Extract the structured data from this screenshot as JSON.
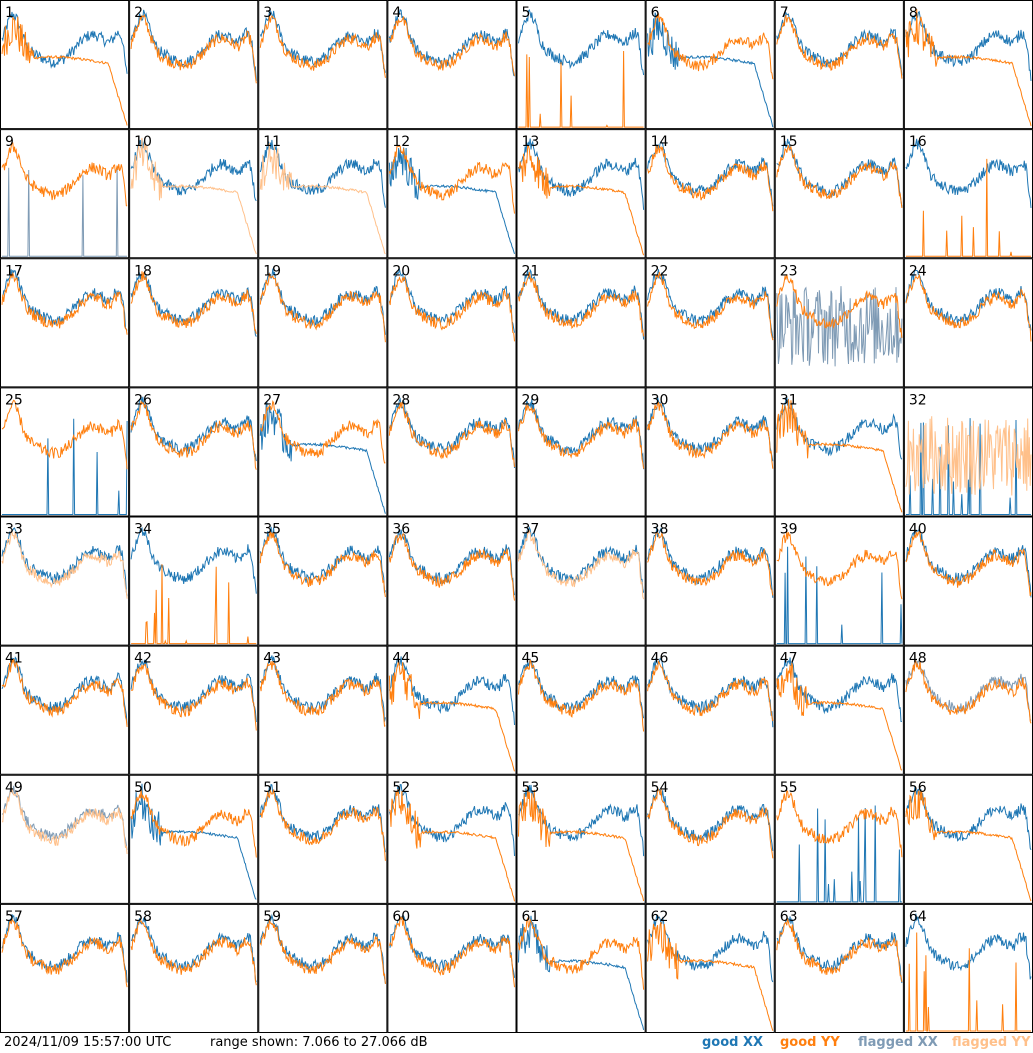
{
  "chart_data": {
    "type": "line",
    "grid_rows": 8,
    "grid_cols": 8,
    "panel_labels": [
      "1",
      "2",
      "3",
      "4",
      "5",
      "6",
      "7",
      "8",
      "9",
      "10",
      "11",
      "12",
      "13",
      "14",
      "15",
      "16",
      "17",
      "18",
      "19",
      "20",
      "21",
      "22",
      "23",
      "24",
      "25",
      "26",
      "27",
      "28",
      "29",
      "30",
      "31",
      "32",
      "33",
      "34",
      "35",
      "36",
      "37",
      "38",
      "39",
      "40",
      "41",
      "42",
      "43",
      "44",
      "45",
      "46",
      "47",
      "48",
      "49",
      "50",
      "51",
      "52",
      "53",
      "54",
      "55",
      "56",
      "57",
      "58",
      "59",
      "60",
      "61",
      "62",
      "63",
      "64"
    ],
    "range_db": [
      7.066,
      27.066
    ],
    "legend": {
      "good_xx": "good XX",
      "good_yy": "good YY",
      "flagged_xx": "flagged XX",
      "flagged_yy": "flagged YY"
    },
    "colors": {
      "good_xx": "#1f77b4",
      "good_yy": "#ff7f0e",
      "flagged_xx": "#7f9bb5",
      "flagged_yy": "#ffc08a"
    },
    "panels": {
      "1": {
        "xx": "good",
        "yy": "good",
        "yy_shape": "droop"
      },
      "5": {
        "xx": "good",
        "yy": "good",
        "yy_shape": "spikes"
      },
      "6": {
        "xx": "good",
        "yy": "good",
        "xx_shape": "droop"
      },
      "8": {
        "xx": "good",
        "yy": "good",
        "yy_shape": "droop"
      },
      "9": {
        "xx": "flagged",
        "yy": "good",
        "xx_shape": "spikes"
      },
      "10": {
        "xx": "good",
        "yy": "flagged",
        "yy_shape": "droop"
      },
      "11": {
        "xx": "good",
        "yy": "flagged",
        "yy_shape": "droop"
      },
      "12": {
        "xx": "good",
        "yy": "good",
        "xx_shape": "droop"
      },
      "13": {
        "xx": "good",
        "yy": "good",
        "yy_shape": "droop"
      },
      "16": {
        "xx": "good",
        "yy": "good",
        "yy_shape": "spikes"
      },
      "23": {
        "xx": "flagged",
        "yy": "good",
        "xx_shape": "noise"
      },
      "25": {
        "xx": "good",
        "yy": "good",
        "xx_shape": "spikes"
      },
      "27": {
        "xx": "good",
        "yy": "good",
        "xx_shape": "droop"
      },
      "31": {
        "xx": "good",
        "yy": "good",
        "yy_shape": "droop"
      },
      "32": {
        "xx": "good",
        "yy": "flagged",
        "xx_shape": "spikes",
        "yy_shape": "noise"
      },
      "33": {
        "xx": "good",
        "yy": "flagged"
      },
      "34": {
        "xx": "good",
        "yy": "good",
        "yy_shape": "spikes"
      },
      "37": {
        "xx": "good",
        "yy": "flagged"
      },
      "39": {
        "xx": "good",
        "yy": "good",
        "xx_shape": "spikes"
      },
      "44": {
        "xx": "good",
        "yy": "good",
        "yy_shape": "droop"
      },
      "47": {
        "xx": "good",
        "yy": "good",
        "yy_shape": "droop"
      },
      "48": {
        "xx": "flagged",
        "yy": "good"
      },
      "49": {
        "xx": "flagged",
        "yy": "flagged"
      },
      "50": {
        "xx": "good",
        "yy": "good",
        "xx_shape": "droop"
      },
      "52": {
        "xx": "good",
        "yy": "good",
        "yy_shape": "droop"
      },
      "53": {
        "xx": "good",
        "yy": "good",
        "yy_shape": "droop"
      },
      "55": {
        "xx": "good",
        "yy": "good",
        "xx_shape": "spikes"
      },
      "56": {
        "xx": "good",
        "yy": "good",
        "yy_shape": "droop"
      },
      "61": {
        "xx": "good",
        "yy": "good",
        "xx_shape": "droop"
      },
      "62": {
        "xx": "good",
        "yy": "good",
        "yy_shape": "droop"
      },
      "64": {
        "xx": "good",
        "yy": "good",
        "yy_shape": "spikes"
      }
    }
  },
  "footer": {
    "timestamp": "2024/11/09 15:57:00 UTC",
    "range_text": "range shown: 7.066 to 27.066 dB"
  }
}
